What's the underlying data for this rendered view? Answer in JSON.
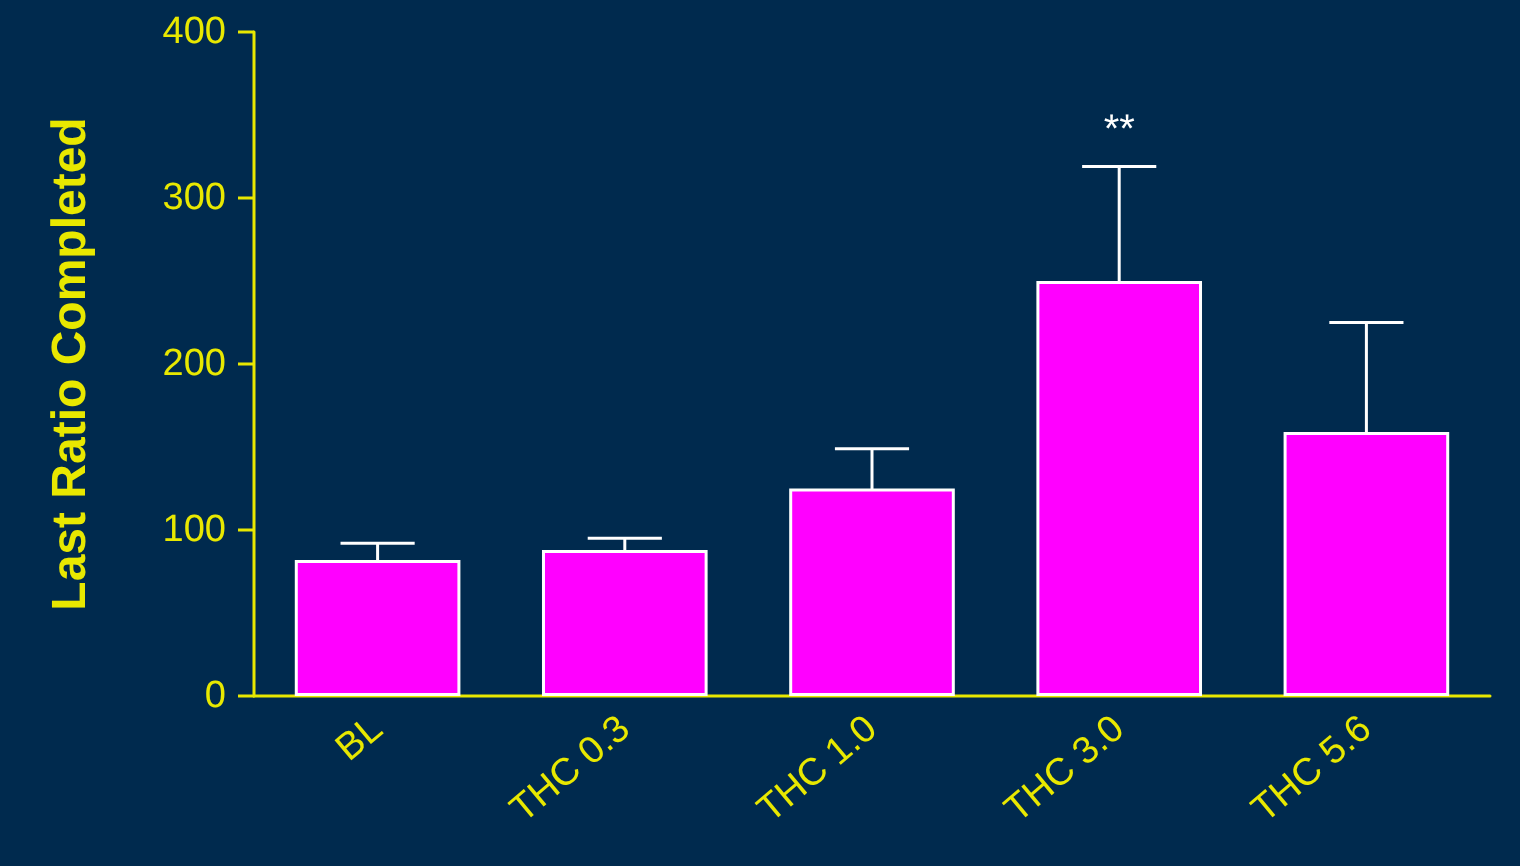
{
  "chart_data": {
    "type": "bar",
    "ylabel": "Last Ratio Completed",
    "categories": [
      "BL",
      "THC 0.3",
      "THC 1.0",
      "THC 3.0",
      "THC 5.6"
    ],
    "series": [
      {
        "color": "#ff00ff",
        "values": [
          82,
          88,
          125,
          250,
          159
        ],
        "errors": [
          10,
          7,
          24,
          69,
          66
        ]
      }
    ],
    "ylim": [
      0,
      400
    ],
    "yticks": [
      0,
      100,
      200,
      300,
      400
    ],
    "grid": false,
    "annotations": [
      "**"
    ]
  }
}
